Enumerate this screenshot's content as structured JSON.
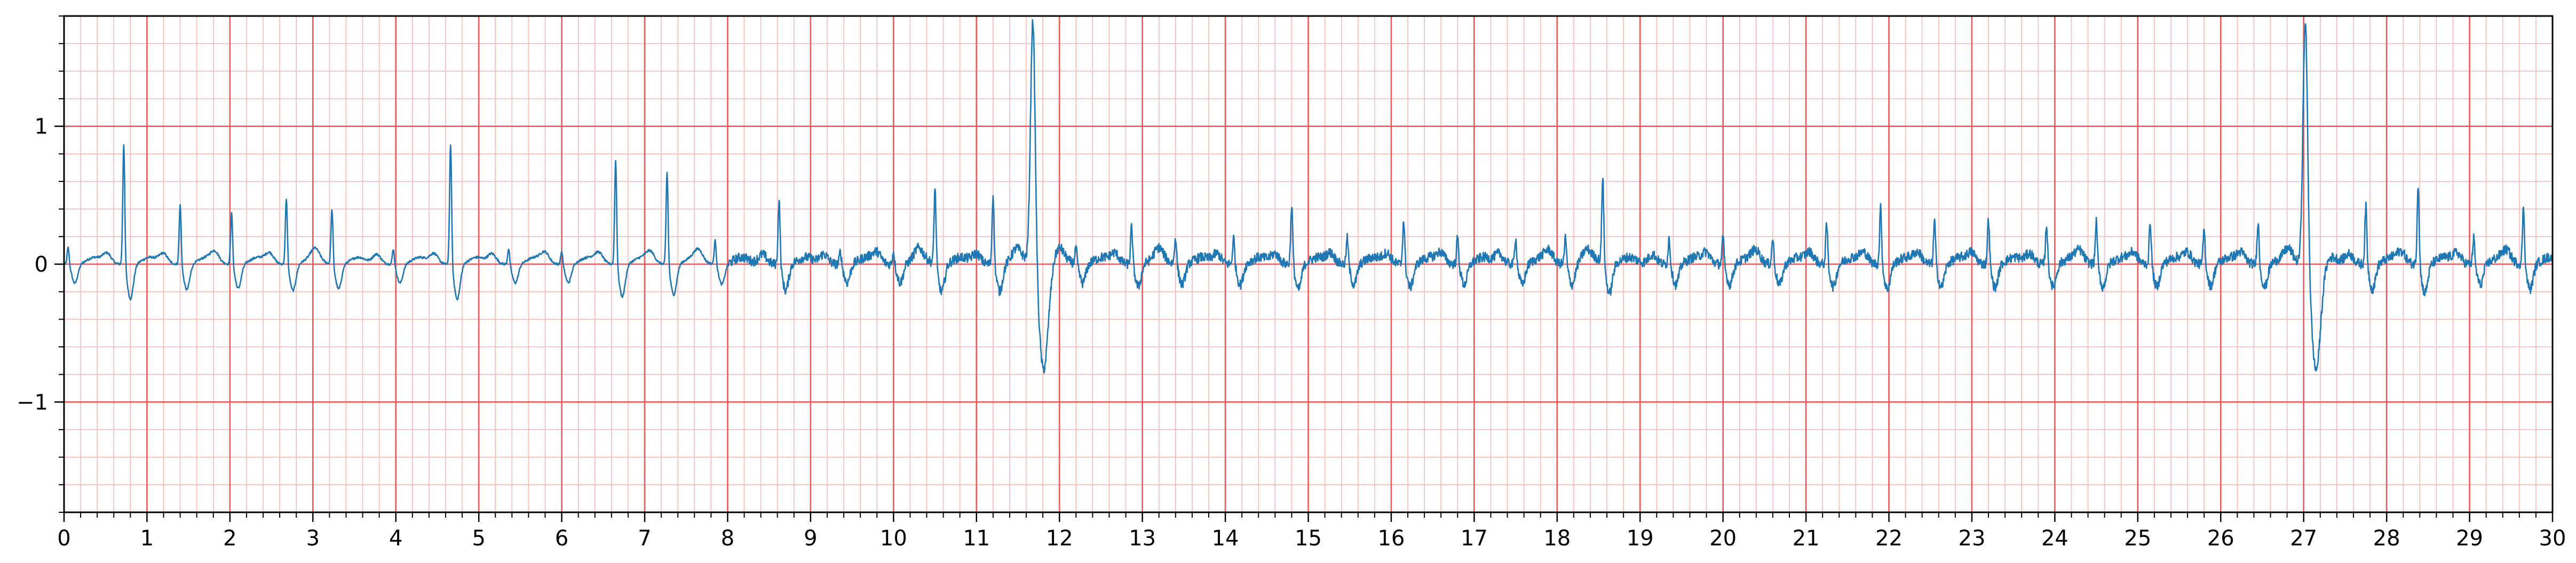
{
  "chart_data": {
    "type": "line",
    "title": "",
    "xlabel": "",
    "ylabel": "",
    "xlim": [
      0,
      30
    ],
    "ylim": [
      -1.8,
      1.8
    ],
    "x_ticks": [
      0,
      1,
      2,
      3,
      4,
      5,
      6,
      7,
      8,
      9,
      10,
      11,
      12,
      13,
      14,
      15,
      16,
      17,
      18,
      19,
      20,
      21,
      22,
      23,
      24,
      25,
      26,
      27,
      28,
      29,
      30
    ],
    "x_tick_labels": [
      "0",
      "1",
      "2",
      "3",
      "4",
      "5",
      "6",
      "7",
      "8",
      "9",
      "10",
      "11",
      "12",
      "13",
      "14",
      "15",
      "16",
      "17",
      "18",
      "19",
      "20",
      "21",
      "22",
      "23",
      "24",
      "25",
      "26",
      "27",
      "28",
      "29",
      "30"
    ],
    "y_ticks": [
      -1,
      0,
      1
    ],
    "y_tick_labels": [
      "−1",
      "0",
      "1"
    ],
    "grid": true,
    "grid_major": {
      "x_step": 1,
      "y_step": 1,
      "color": "#e85a5a"
    },
    "grid_minor": {
      "x_step": 0.2,
      "y_step": 0.2,
      "color": "#f7b8b8"
    },
    "legend": "none",
    "series": [
      {
        "color": "#1f77b4",
        "beat_times": [
          0.05,
          0.72,
          1.4,
          2.02,
          2.68,
          3.23,
          3.97,
          4.66,
          5.36,
          6.0,
          6.65,
          7.27,
          7.85,
          8.62,
          9.36,
          10.0,
          10.5,
          11.2,
          11.68,
          12.2,
          12.87,
          13.4,
          14.1,
          14.8,
          15.47,
          16.15,
          16.8,
          17.5,
          18.1,
          18.55,
          19.35,
          20.0,
          20.6,
          21.25,
          21.9,
          22.55,
          23.2,
          23.9,
          24.5,
          25.15,
          25.8,
          26.45,
          27.02,
          27.75,
          28.38,
          29.05,
          29.65
        ],
        "beat_amplitudes": [
          0.13,
          0.89,
          0.44,
          0.38,
          0.49,
          0.41,
          0.12,
          0.89,
          0.12,
          0.1,
          0.77,
          0.68,
          0.18,
          0.48,
          0.1,
          0.1,
          0.56,
          0.52,
          1.8,
          0.12,
          0.28,
          0.2,
          0.2,
          0.44,
          0.2,
          0.33,
          0.2,
          0.2,
          0.2,
          0.64,
          0.2,
          0.2,
          0.2,
          0.3,
          0.42,
          0.32,
          0.34,
          0.3,
          0.32,
          0.32,
          0.26,
          0.32,
          1.8,
          0.43,
          0.6,
          0.2,
          0.42
        ],
        "trough_minimum": -0.77,
        "baseline": 0.0
      }
    ]
  }
}
